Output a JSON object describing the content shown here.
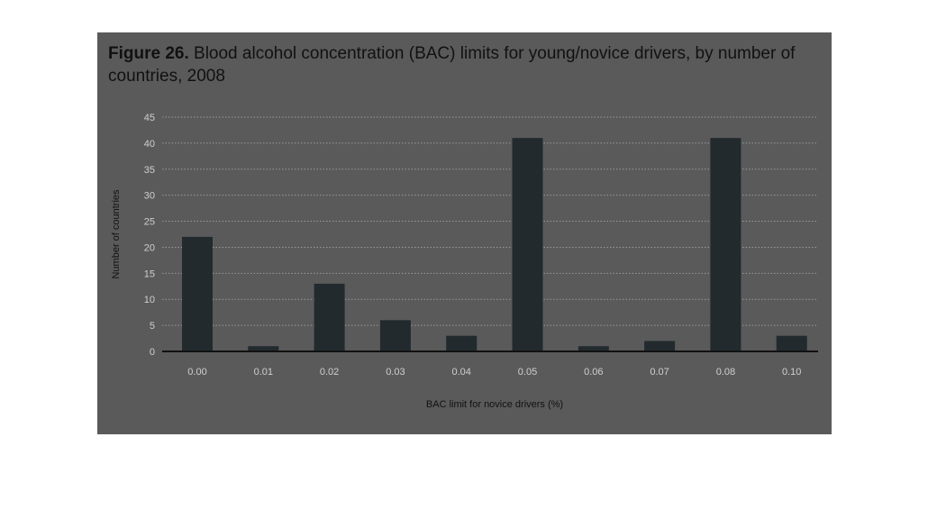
{
  "figure": {
    "label": "Figure 26.",
    "caption": "Blood alcohol concentration (BAC) limits for young/novice drivers, by number of countries, 2008"
  },
  "colors": {
    "panel": "#5a5a5a",
    "bar": "#222a2e",
    "grid": "#9a9a9a",
    "axis": "#111111"
  },
  "chart_data": {
    "type": "bar",
    "title": "Blood alcohol concentration (BAC) limits for young/novice drivers, by number of countries, 2008",
    "xlabel": "BAC limit for novice drivers (%)",
    "ylabel": "Number of countries",
    "categories": [
      "0.00",
      "0.01",
      "0.02",
      "0.03",
      "0.04",
      "0.05",
      "0.06",
      "0.07",
      "0.08",
      "0.10"
    ],
    "values": [
      22,
      1,
      13,
      6,
      3,
      41,
      1,
      2,
      41,
      3
    ],
    "ylim": [
      0,
      45
    ],
    "yticks": [
      0,
      5,
      10,
      15,
      20,
      25,
      30,
      35,
      40,
      45
    ],
    "grid": true,
    "legend": "none"
  }
}
